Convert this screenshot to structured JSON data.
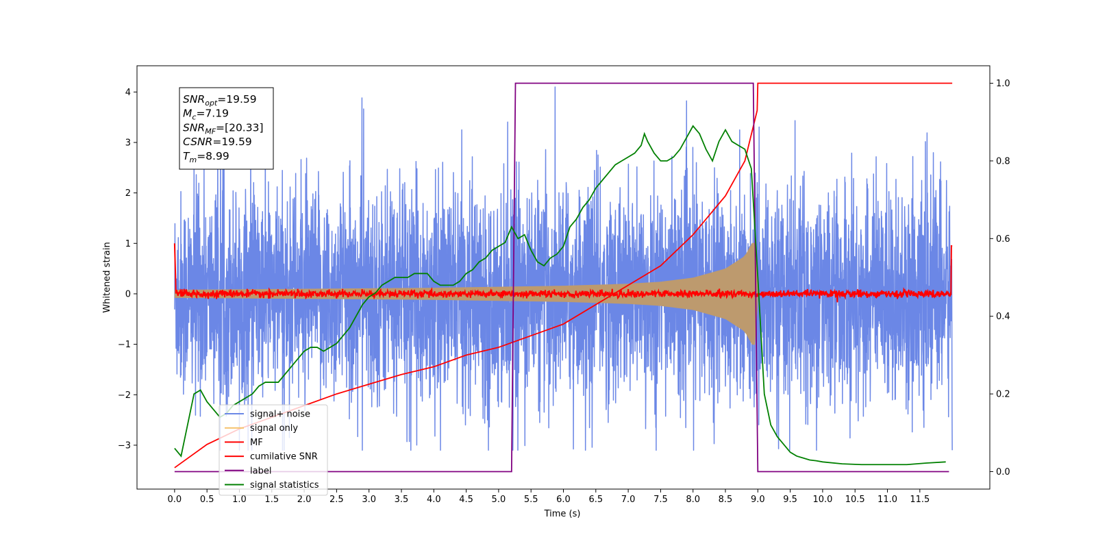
{
  "chart_data": {
    "type": "line",
    "xlabel": "Time (s)",
    "ylabel": "Whitened strain",
    "xlim": [
      -0.58,
      12.58
    ],
    "ylim_left": [
      -3.87,
      4.52
    ],
    "ylim_right": [
      -0.045,
      1.045
    ],
    "x_ticks": [
      "0.0",
      "0.5",
      "1.0",
      "1.5",
      "2.0",
      "2.5",
      "3.0",
      "3.5",
      "4.0",
      "4.5",
      "5.0",
      "5.5",
      "6.0",
      "6.5",
      "7.0",
      "7.5",
      "8.0",
      "8.5",
      "9.0",
      "9.5",
      "10.0",
      "10.5",
      "11.0",
      "11.5"
    ],
    "y_ticks_left": [
      "4",
      "3",
      "2",
      "1",
      "0",
      "−1",
      "−2",
      "−3"
    ],
    "y_ticks_right": [
      "1.0",
      "0.8",
      "0.6",
      "0.4",
      "0.2",
      "0.0"
    ],
    "grid": false,
    "legend_position": "lower-left",
    "info_box": [
      {
        "main": "SNR",
        "sub": "opt",
        "value": "=19.59"
      },
      {
        "main": "M",
        "sub": "c",
        "value": "=7.19"
      },
      {
        "main": "SNR",
        "sub": "MF",
        "value": "=[20.33]"
      },
      {
        "main": "CSNR",
        "sub": "",
        "value": "=19.59"
      },
      {
        "main": "T",
        "sub": "m",
        "value": "=8.99"
      }
    ],
    "series": [
      {
        "name": "signal+ noise",
        "color": "#6b87e6",
        "axis": "left",
        "note_range": [
          -3.1,
          4.1
        ],
        "x_range": [
          0,
          12
        ]
      },
      {
        "name": "signal only",
        "color": "#f5c26b",
        "axis": "left",
        "envelope": {
          "x": [
            0,
            1,
            2,
            3,
            4,
            5,
            6,
            7,
            7.5,
            8,
            8.5,
            8.8,
            8.95,
            9.0
          ],
          "amp": [
            0.08,
            0.09,
            0.1,
            0.11,
            0.12,
            0.14,
            0.16,
            0.2,
            0.24,
            0.32,
            0.5,
            0.75,
            1.1,
            0.2
          ]
        }
      },
      {
        "name": "MF",
        "color": "#ff0000",
        "axis": "left",
        "baseline": 0.0,
        "x_range": [
          0,
          12
        ]
      },
      {
        "name": "cumilative SNR",
        "color": "#ff0000",
        "axis": "right",
        "x": [
          0,
          0.5,
          1,
          1.5,
          2,
          2.5,
          3,
          3.5,
          4,
          4.5,
          5,
          5.5,
          6,
          6.5,
          7,
          7.5,
          8,
          8.5,
          8.8,
          8.99,
          9.0,
          12
        ],
        "values": [
          0.01,
          0.07,
          0.11,
          0.14,
          0.17,
          0.2,
          0.225,
          0.25,
          0.27,
          0.3,
          0.32,
          0.35,
          0.38,
          0.43,
          0.48,
          0.53,
          0.61,
          0.71,
          0.8,
          0.93,
          1.0,
          1.0
        ]
      },
      {
        "name": "label",
        "color": "#800080",
        "axis": "right",
        "x": [
          0,
          5.2,
          5.26,
          8.93,
          9.0,
          11.95
        ],
        "values": [
          0,
          0,
          1,
          1,
          0,
          0
        ]
      },
      {
        "name": "signal statistics",
        "color": "#008000",
        "axis": "right",
        "x": [
          0,
          0.1,
          0.2,
          0.3,
          0.4,
          0.5,
          0.6,
          0.7,
          0.8,
          0.9,
          1.0,
          1.1,
          1.2,
          1.3,
          1.4,
          1.5,
          1.6,
          1.7,
          1.8,
          1.9,
          2.0,
          2.1,
          2.2,
          2.3,
          2.4,
          2.5,
          2.6,
          2.7,
          2.8,
          2.9,
          3.0,
          3.1,
          3.2,
          3.3,
          3.4,
          3.5,
          3.6,
          3.7,
          3.8,
          3.9,
          4.0,
          4.1,
          4.2,
          4.3,
          4.4,
          4.5,
          4.6,
          4.7,
          4.8,
          4.9,
          5.0,
          5.1,
          5.2,
          5.3,
          5.4,
          5.5,
          5.6,
          5.7,
          5.8,
          5.9,
          6.0,
          6.1,
          6.2,
          6.3,
          6.4,
          6.5,
          6.6,
          6.7,
          6.8,
          6.9,
          7.0,
          7.1,
          7.2,
          7.25,
          7.3,
          7.4,
          7.5,
          7.6,
          7.7,
          7.8,
          7.9,
          8.0,
          8.1,
          8.2,
          8.3,
          8.4,
          8.5,
          8.6,
          8.7,
          8.8,
          8.9,
          9.0,
          9.1,
          9.2,
          9.3,
          9.4,
          9.5,
          9.6,
          9.7,
          9.8,
          9.9,
          10.0,
          10.3,
          10.6,
          11.0,
          11.3,
          11.6,
          11.9
        ],
        "values": [
          0.06,
          0.04,
          0.12,
          0.2,
          0.21,
          0.18,
          0.16,
          0.14,
          0.15,
          0.17,
          0.18,
          0.19,
          0.2,
          0.22,
          0.23,
          0.23,
          0.23,
          0.25,
          0.27,
          0.29,
          0.31,
          0.32,
          0.32,
          0.31,
          0.32,
          0.33,
          0.35,
          0.37,
          0.4,
          0.43,
          0.45,
          0.46,
          0.48,
          0.49,
          0.5,
          0.5,
          0.5,
          0.51,
          0.51,
          0.51,
          0.49,
          0.48,
          0.48,
          0.48,
          0.49,
          0.51,
          0.52,
          0.54,
          0.55,
          0.57,
          0.58,
          0.59,
          0.63,
          0.6,
          0.61,
          0.57,
          0.54,
          0.53,
          0.55,
          0.56,
          0.58,
          0.63,
          0.65,
          0.68,
          0.7,
          0.73,
          0.75,
          0.77,
          0.79,
          0.8,
          0.81,
          0.82,
          0.84,
          0.87,
          0.85,
          0.82,
          0.8,
          0.8,
          0.81,
          0.83,
          0.86,
          0.89,
          0.87,
          0.83,
          0.8,
          0.85,
          0.88,
          0.85,
          0.84,
          0.83,
          0.78,
          0.5,
          0.2,
          0.12,
          0.09,
          0.07,
          0.05,
          0.04,
          0.035,
          0.03,
          0.028,
          0.025,
          0.02,
          0.018,
          0.018,
          0.018,
          0.022,
          0.025
        ]
      }
    ]
  }
}
